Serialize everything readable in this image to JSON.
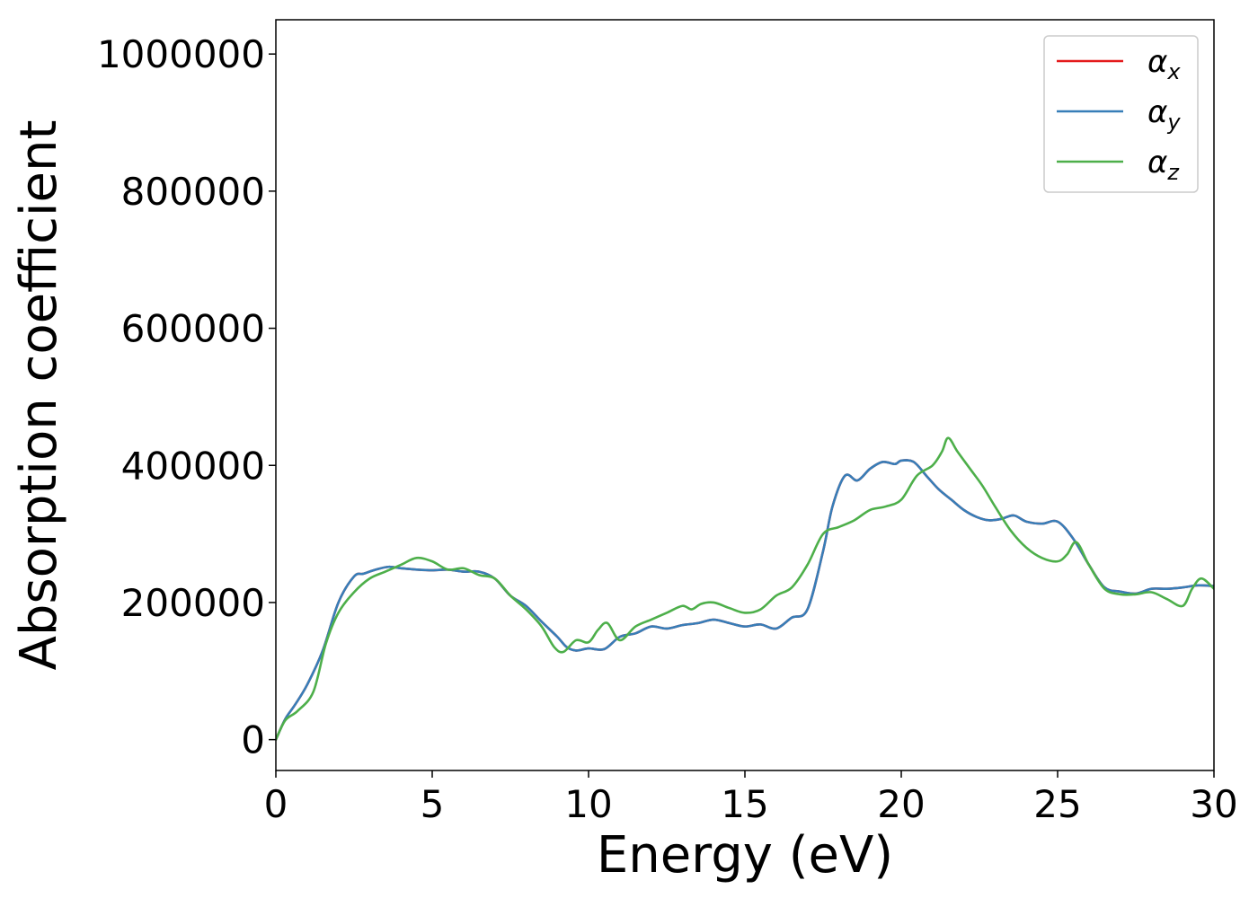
{
  "chart_data": {
    "type": "line",
    "xlabel": "Energy (eV)",
    "ylabel": "Absorption coefficient",
    "xlim": [
      0,
      30
    ],
    "ylim": [
      -45000,
      1050000
    ],
    "xticks": [
      0,
      5,
      10,
      15,
      20,
      25,
      30
    ],
    "xtick_labels": [
      "0",
      "5",
      "10",
      "15",
      "20",
      "25",
      "30"
    ],
    "yticks": [
      0,
      200000,
      400000,
      600000,
      800000,
      1000000
    ],
    "ytick_labels": [
      "0",
      "200000",
      "400000",
      "600000",
      "800000",
      "1000000"
    ],
    "grid": false,
    "legend_position": "top-right",
    "series": [
      {
        "name": "αx",
        "legend_base": "α",
        "legend_sub": "x",
        "color": "#e41a1c",
        "x": [
          0,
          0.3,
          0.6,
          1,
          1.5,
          2,
          2.5,
          2.8,
          3.2,
          3.6,
          4,
          4.5,
          5,
          5.5,
          6,
          6.5,
          7,
          7.5,
          8,
          8.5,
          9,
          9.3,
          9.6,
          10,
          10.5,
          11,
          11.5,
          12,
          12.5,
          13,
          13.5,
          14,
          14.5,
          15,
          15.5,
          16,
          16.5,
          17,
          17.5,
          17.8,
          18.2,
          18.6,
          19,
          19.4,
          19.8,
          20,
          20.4,
          20.8,
          21.2,
          21.6,
          22,
          22.4,
          22.8,
          23.2,
          23.6,
          24,
          24.5,
          25,
          25.5,
          26,
          26.5,
          27,
          27.5,
          28,
          28.5,
          29,
          29.5,
          30
        ],
        "y": [
          0,
          30000,
          50000,
          80000,
          130000,
          200000,
          238000,
          242000,
          248000,
          252000,
          250000,
          248000,
          247000,
          248000,
          245000,
          245000,
          235000,
          210000,
          195000,
          172000,
          150000,
          135000,
          130000,
          133000,
          132000,
          150000,
          155000,
          165000,
          162000,
          167000,
          170000,
          175000,
          170000,
          165000,
          168000,
          162000,
          178000,
          190000,
          275000,
          340000,
          385000,
          378000,
          395000,
          405000,
          402000,
          407000,
          405000,
          385000,
          365000,
          350000,
          335000,
          325000,
          320000,
          322000,
          327000,
          318000,
          315000,
          318000,
          293000,
          255000,
          222000,
          216000,
          213000,
          220000,
          220000,
          222000,
          225000,
          224000
        ]
      },
      {
        "name": "αy",
        "legend_base": "α",
        "legend_sub": "y",
        "color": "#377eb8",
        "x": [
          0,
          0.3,
          0.6,
          1,
          1.5,
          2,
          2.5,
          2.8,
          3.2,
          3.6,
          4,
          4.5,
          5,
          5.5,
          6,
          6.5,
          7,
          7.5,
          8,
          8.5,
          9,
          9.3,
          9.6,
          10,
          10.5,
          11,
          11.5,
          12,
          12.5,
          13,
          13.5,
          14,
          14.5,
          15,
          15.5,
          16,
          16.5,
          17,
          17.5,
          17.8,
          18.2,
          18.6,
          19,
          19.4,
          19.8,
          20,
          20.4,
          20.8,
          21.2,
          21.6,
          22,
          22.4,
          22.8,
          23.2,
          23.6,
          24,
          24.5,
          25,
          25.5,
          26,
          26.5,
          27,
          27.5,
          28,
          28.5,
          29,
          29.5,
          30
        ],
        "y": [
          0,
          30000,
          50000,
          80000,
          130000,
          200000,
          238000,
          242000,
          248000,
          252000,
          250000,
          248000,
          247000,
          248000,
          245000,
          245000,
          235000,
          210000,
          195000,
          172000,
          150000,
          135000,
          130000,
          133000,
          132000,
          150000,
          155000,
          165000,
          162000,
          167000,
          170000,
          175000,
          170000,
          165000,
          168000,
          162000,
          178000,
          190000,
          275000,
          340000,
          385000,
          378000,
          395000,
          405000,
          402000,
          407000,
          405000,
          385000,
          365000,
          350000,
          335000,
          325000,
          320000,
          322000,
          327000,
          318000,
          315000,
          318000,
          293000,
          255000,
          222000,
          216000,
          213000,
          220000,
          220000,
          222000,
          225000,
          224000
        ]
      },
      {
        "name": "αz",
        "legend_base": "α",
        "legend_sub": "z",
        "color": "#4daf4a",
        "x": [
          0,
          0.3,
          0.7,
          1.2,
          1.6,
          2,
          2.5,
          3,
          3.5,
          4,
          4.5,
          5,
          5.5,
          6,
          6.5,
          7,
          7.5,
          8,
          8.5,
          8.9,
          9.2,
          9.6,
          10,
          10.3,
          10.6,
          11,
          11.5,
          12,
          12.5,
          13,
          13.3,
          13.6,
          14,
          14.5,
          15,
          15.5,
          16,
          16.5,
          17,
          17.5,
          18,
          18.5,
          19,
          19.5,
          20,
          20.5,
          21,
          21.3,
          21.5,
          21.8,
          22.2,
          22.6,
          23,
          23.5,
          24,
          24.5,
          25,
          25.3,
          25.6,
          26,
          26.5,
          27,
          27.5,
          28,
          28.5,
          29,
          29.3,
          29.6,
          30
        ],
        "y": [
          0,
          28000,
          42000,
          70000,
          140000,
          185000,
          215000,
          235000,
          245000,
          255000,
          265000,
          260000,
          248000,
          250000,
          240000,
          235000,
          210000,
          190000,
          165000,
          135000,
          128000,
          145000,
          142000,
          160000,
          170000,
          145000,
          165000,
          175000,
          185000,
          195000,
          190000,
          198000,
          200000,
          192000,
          185000,
          190000,
          210000,
          222000,
          255000,
          300000,
          310000,
          320000,
          335000,
          340000,
          350000,
          385000,
          400000,
          420000,
          440000,
          420000,
          395000,
          370000,
          340000,
          305000,
          280000,
          265000,
          260000,
          270000,
          288000,
          255000,
          220000,
          212000,
          212000,
          215000,
          205000,
          195000,
          220000,
          235000,
          220000
        ]
      }
    ]
  }
}
